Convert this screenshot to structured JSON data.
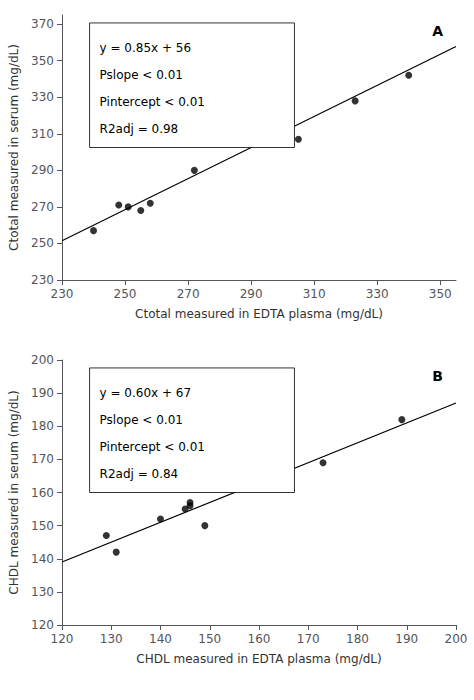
{
  "chart_data": [
    {
      "type": "scatter",
      "title": "A",
      "xlabel": "Ctotal measured in EDTA plasma (mg/dL)",
      "ylabel": "Ctotal measured in serum (mg/dL)",
      "series": [
        {
          "type": "scatter",
          "x": [
            240,
            248,
            251,
            255,
            258,
            272,
            305,
            323,
            340
          ],
          "values": [
            257,
            271,
            270,
            268,
            272,
            290,
            307,
            328,
            342
          ],
          "color": "#000000"
        },
        {
          "type": "line",
          "x": [
            230,
            355
          ],
          "values": [
            251.5,
            357.75
          ],
          "color": "#000000"
        }
      ],
      "xlim": [
        230,
        355
      ],
      "ylim": [
        230,
        375
      ],
      "xticks": [
        230,
        250,
        270,
        290,
        310,
        330,
        350
      ],
      "yticks": [
        230,
        250,
        270,
        290,
        310,
        330,
        350,
        370
      ],
      "grid": false,
      "annotations": [
        "y = 0.85x + 56",
        "Pslope < 0.01",
        "Pintercept < 0.01",
        "R2adj = 0.98"
      ]
    },
    {
      "type": "scatter",
      "title": "B",
      "xlabel": "CHDL measured in EDTA plasma (mg/dL)",
      "ylabel": "CHDL measured in serum (mg/dL)",
      "series": [
        {
          "type": "scatter",
          "x": [
            129,
            131,
            140,
            145,
            146,
            146,
            149,
            173,
            189
          ],
          "values": [
            147,
            142,
            152,
            155,
            157,
            156,
            150,
            169,
            182
          ],
          "color": "#000000"
        },
        {
          "type": "line",
          "x": [
            120,
            200
          ],
          "values": [
            139,
            187
          ],
          "color": "#000000"
        }
      ],
      "xlim": [
        120,
        200
      ],
      "ylim": [
        120,
        200
      ],
      "xticks": [
        120,
        130,
        140,
        150,
        160,
        170,
        180,
        190,
        200
      ],
      "yticks": [
        120,
        130,
        140,
        150,
        160,
        170,
        180,
        190,
        200
      ],
      "grid": false,
      "annotations": [
        "y = 0.60x + 67",
        "Pslope < 0.01",
        "Pintercept < 0.01",
        "R2adj = 0.84"
      ]
    }
  ]
}
